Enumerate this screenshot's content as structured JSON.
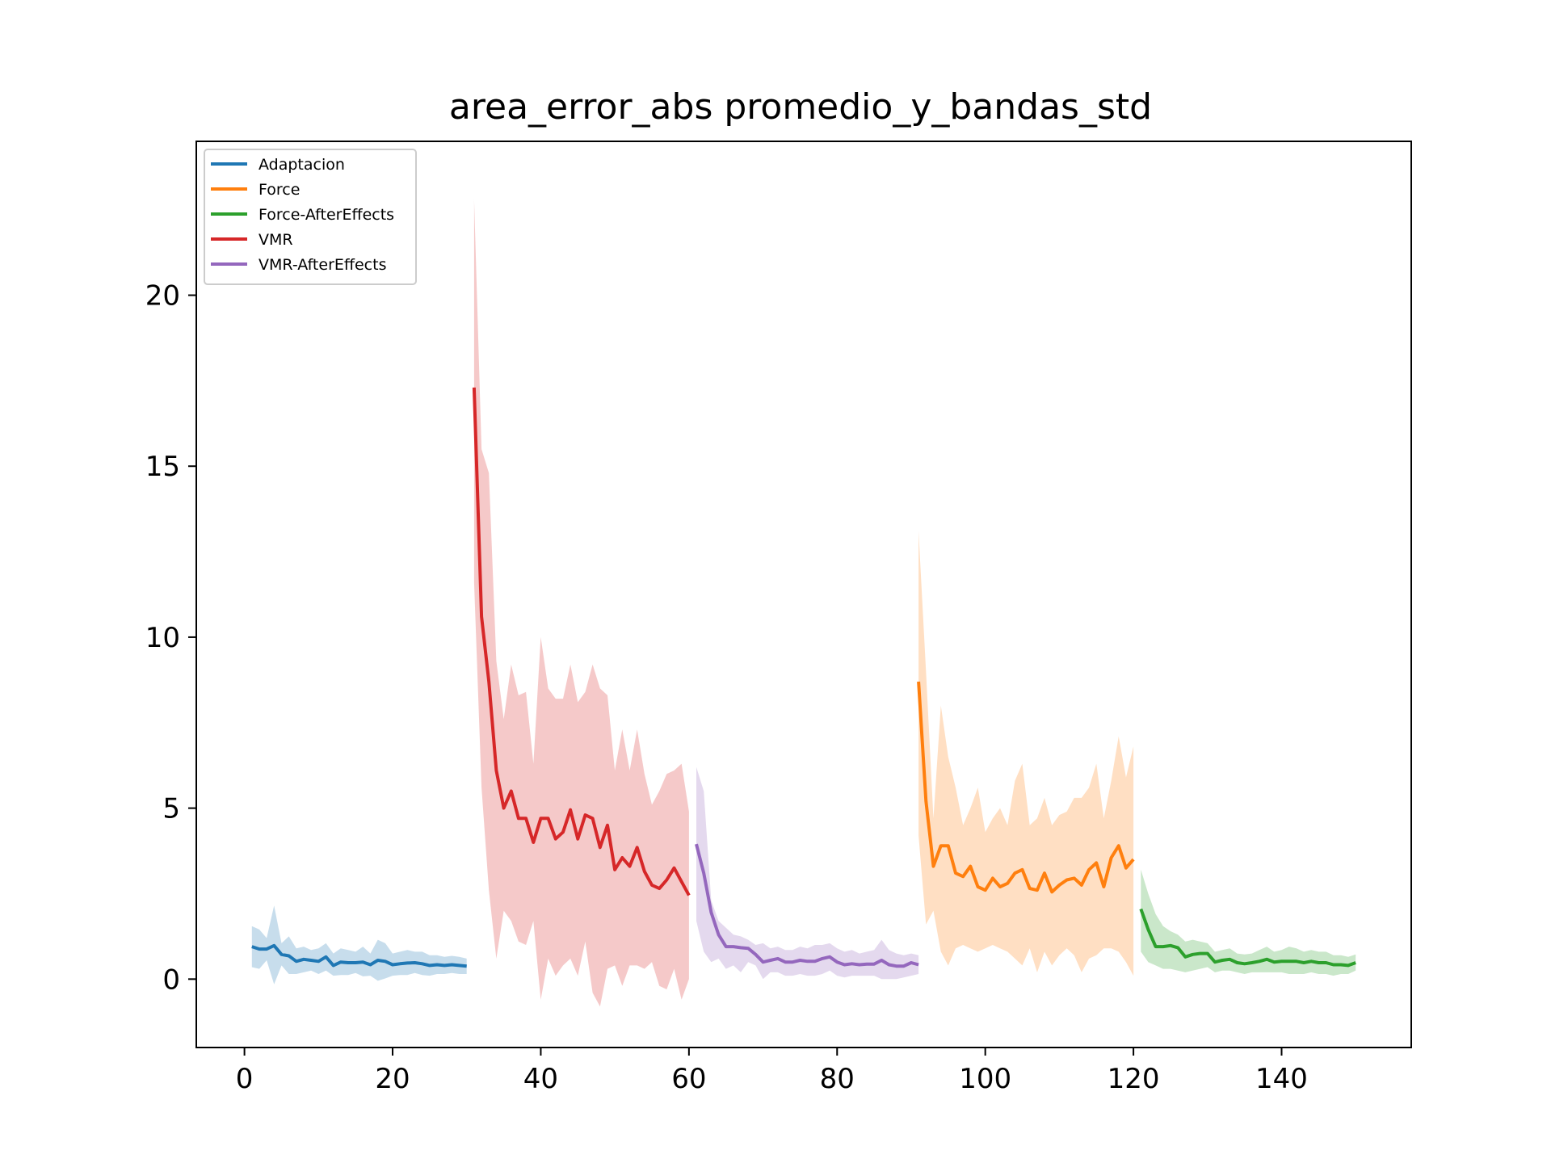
{
  "chart_data": {
    "type": "line",
    "title": "area_error_abs promedio_y_bandas_std",
    "xlabel": "",
    "ylabel": "",
    "xlim": [
      -6.5,
      157.5
    ],
    "ylim": [
      -2,
      24.5
    ],
    "xticks": [
      0,
      20,
      40,
      60,
      80,
      100,
      120,
      140
    ],
    "yticks": [
      0,
      5,
      10,
      15,
      20
    ],
    "grid": false,
    "legend_position": "top-left",
    "series": [
      {
        "name": "Adaptacion",
        "color": "#1f77b4",
        "x_start": 1,
        "mean": [
          0.95,
          0.88,
          0.88,
          0.98,
          0.72,
          0.68,
          0.52,
          0.58,
          0.55,
          0.52,
          0.65,
          0.4,
          0.5,
          0.48,
          0.48,
          0.5,
          0.42,
          0.55,
          0.52,
          0.42,
          0.45,
          0.47,
          0.48,
          0.45,
          0.4,
          0.42,
          0.4,
          0.42,
          0.4,
          0.38
        ],
        "upper": [
          1.55,
          1.45,
          1.2,
          2.15,
          1.05,
          1.25,
          0.9,
          0.95,
          0.85,
          0.9,
          1.05,
          0.75,
          0.9,
          0.85,
          0.8,
          0.95,
          0.75,
          1.15,
          1.05,
          0.75,
          0.8,
          0.85,
          0.8,
          0.8,
          0.7,
          0.7,
          0.65,
          0.68,
          0.65,
          0.6
        ],
        "lower": [
          0.35,
          0.3,
          0.55,
          -0.15,
          0.4,
          0.15,
          0.15,
          0.2,
          0.25,
          0.15,
          0.25,
          0.1,
          0.12,
          0.12,
          0.18,
          0.08,
          0.1,
          -0.05,
          0.02,
          0.1,
          0.12,
          0.12,
          0.18,
          0.12,
          0.1,
          0.15,
          0.15,
          0.18,
          0.15,
          0.15
        ]
      },
      {
        "name": "Force",
        "color": "#ff7f0e",
        "x_start": 91,
        "mean": [
          8.7,
          5.2,
          3.3,
          3.9,
          3.9,
          3.1,
          3.0,
          3.3,
          2.7,
          2.6,
          2.95,
          2.7,
          2.8,
          3.1,
          3.2,
          2.65,
          2.6,
          3.1,
          2.55,
          2.75,
          2.9,
          2.95,
          2.75,
          3.2,
          3.4,
          2.7,
          3.55,
          3.9,
          3.25,
          3.5
        ],
        "upper": [
          13.1,
          9.0,
          4.7,
          8.0,
          6.5,
          5.6,
          4.5,
          5.0,
          5.6,
          4.3,
          4.7,
          5.0,
          4.5,
          5.8,
          6.3,
          4.5,
          4.7,
          5.3,
          4.5,
          4.8,
          4.9,
          5.3,
          5.3,
          5.6,
          6.3,
          4.7,
          5.8,
          7.1,
          5.9,
          6.8
        ],
        "lower": [
          4.2,
          1.6,
          2.0,
          0.8,
          0.4,
          0.9,
          1.0,
          0.9,
          0.8,
          0.9,
          1.0,
          0.9,
          0.8,
          0.6,
          0.4,
          0.9,
          0.2,
          0.8,
          0.4,
          0.7,
          0.9,
          0.7,
          0.2,
          0.6,
          0.7,
          0.9,
          0.9,
          0.8,
          0.5,
          0.1
        ]
      },
      {
        "name": "Force-AfterEffects",
        "color": "#2ca02c",
        "x_start": 121,
        "mean": [
          2.05,
          1.45,
          0.95,
          0.95,
          0.98,
          0.92,
          0.65,
          0.72,
          0.75,
          0.75,
          0.5,
          0.55,
          0.58,
          0.48,
          0.45,
          0.48,
          0.52,
          0.58,
          0.5,
          0.52,
          0.52,
          0.52,
          0.48,
          0.52,
          0.48,
          0.48,
          0.42,
          0.42,
          0.4,
          0.48
        ],
        "upper": [
          3.2,
          2.5,
          1.9,
          1.55,
          1.4,
          1.3,
          1.1,
          1.15,
          1.1,
          1.05,
          0.8,
          0.85,
          0.9,
          0.75,
          0.72,
          0.75,
          0.85,
          0.95,
          0.8,
          0.85,
          0.95,
          0.9,
          0.8,
          0.85,
          0.8,
          0.8,
          0.7,
          0.7,
          0.65,
          0.72
        ],
        "lower": [
          0.8,
          0.5,
          0.4,
          0.3,
          0.3,
          0.25,
          0.2,
          0.25,
          0.3,
          0.35,
          0.2,
          0.25,
          0.25,
          0.2,
          0.15,
          0.2,
          0.2,
          0.2,
          0.2,
          0.2,
          0.15,
          0.15,
          0.15,
          0.2,
          0.15,
          0.15,
          0.1,
          0.15,
          0.15,
          0.25
        ]
      },
      {
        "name": "VMR",
        "color": "#d62728",
        "x_start": 31,
        "mean": [
          17.3,
          10.6,
          8.7,
          6.1,
          5.0,
          5.5,
          4.7,
          4.7,
          4.0,
          4.7,
          4.7,
          4.1,
          4.3,
          4.95,
          4.1,
          4.8,
          4.7,
          3.85,
          4.5,
          3.2,
          3.55,
          3.3,
          3.85,
          3.15,
          2.75,
          2.65,
          2.9,
          3.25,
          2.85,
          2.45
        ],
        "upper": [
          22.8,
          15.5,
          14.8,
          9.3,
          7.6,
          9.2,
          8.3,
          8.4,
          6.3,
          10.0,
          8.5,
          8.2,
          8.2,
          9.2,
          8.1,
          8.4,
          9.2,
          8.5,
          8.3,
          6.1,
          7.3,
          6.1,
          7.3,
          6.0,
          5.1,
          5.5,
          6.0,
          6.1,
          6.3,
          4.9
        ],
        "lower": [
          11.6,
          5.6,
          2.6,
          0.6,
          2.0,
          1.7,
          1.1,
          1.0,
          1.7,
          -0.6,
          0.6,
          0.1,
          0.4,
          0.6,
          0.1,
          1.1,
          -0.4,
          -0.8,
          0.3,
          0.4,
          -0.2,
          0.4,
          0.4,
          0.3,
          0.5,
          -0.2,
          -0.3,
          0.3,
          -0.6,
          0.0
        ]
      },
      {
        "name": "VMR-AfterEffects",
        "color": "#9467bd",
        "x_start": 61,
        "mean": [
          3.95,
          3.1,
          1.95,
          1.3,
          0.95,
          0.95,
          0.92,
          0.9,
          0.72,
          0.5,
          0.55,
          0.6,
          0.5,
          0.5,
          0.55,
          0.52,
          0.52,
          0.6,
          0.65,
          0.5,
          0.42,
          0.45,
          0.42,
          0.44,
          0.44,
          0.55,
          0.42,
          0.38,
          0.38,
          0.48,
          0.42
        ],
        "upper": [
          6.2,
          5.5,
          2.3,
          1.7,
          1.5,
          1.3,
          1.25,
          1.15,
          1.0,
          1.05,
          0.9,
          0.95,
          0.85,
          0.85,
          0.95,
          0.9,
          1.0,
          1.0,
          1.05,
          0.9,
          0.8,
          0.85,
          0.75,
          0.8,
          0.85,
          1.15,
          0.85,
          0.75,
          0.7,
          0.75,
          0.7
        ],
        "lower": [
          1.7,
          0.8,
          0.5,
          0.6,
          0.3,
          0.4,
          0.2,
          0.5,
          0.4,
          0.0,
          0.2,
          0.2,
          0.1,
          0.1,
          0.15,
          0.1,
          0.1,
          0.15,
          0.25,
          0.1,
          0.05,
          0.1,
          0.1,
          0.1,
          0.1,
          0.0,
          0.0,
          0.0,
          0.05,
          0.1,
          0.15
        ]
      }
    ]
  }
}
